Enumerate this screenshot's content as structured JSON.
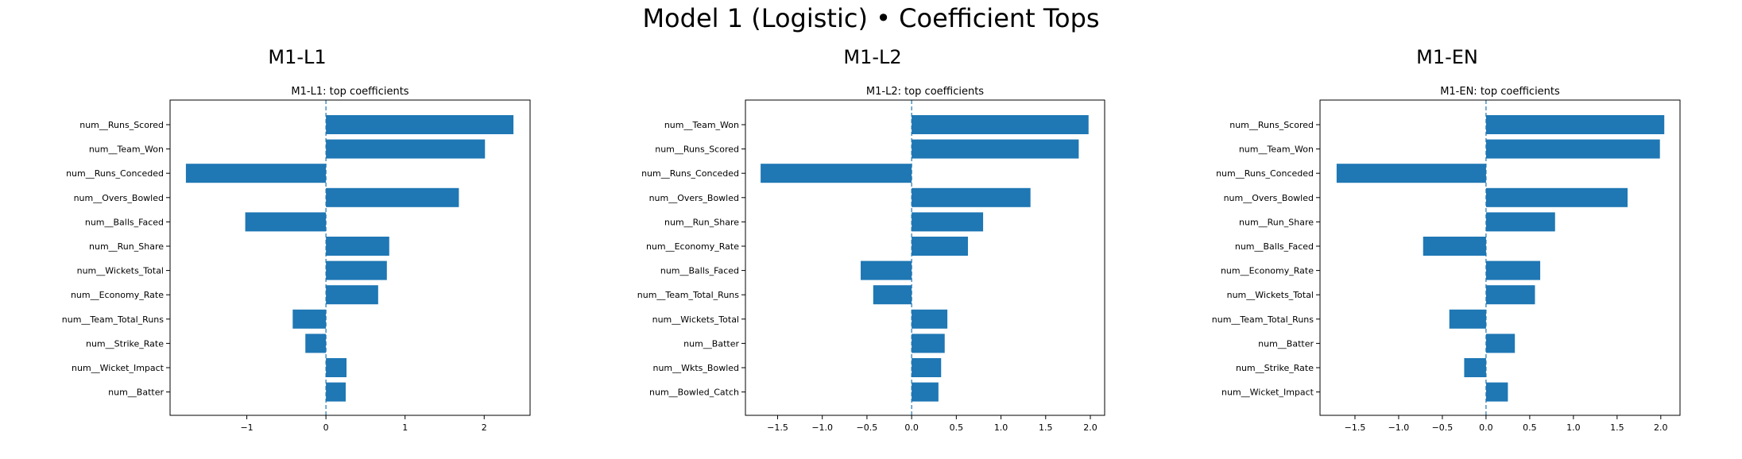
{
  "suptitle": "Model 1 (Logistic) • Coefficient Tops",
  "colors": {
    "bar": "#1f77b4",
    "zero_line": "#1f77b4",
    "axes": "#000000"
  },
  "chart_data": [
    {
      "type": "bar",
      "orientation": "horizontal",
      "panel_title": "M1-L1",
      "title": "M1-L1: top coefficients",
      "xlim": [
        -1.97,
        2.58
      ],
      "xticks": [
        -1,
        0,
        1,
        2
      ],
      "xtick_labels": [
        "−1",
        "0",
        "1",
        "2"
      ],
      "zero_line": "dashed",
      "categories": [
        "num__Runs_Scored",
        "num__Team_Won",
        "num__Runs_Conceded",
        "num__Overs_Bowled",
        "num__Balls_Faced",
        "num__Run_Share",
        "num__Wickets_Total",
        "num__Economy_Rate",
        "num__Team_Total_Runs",
        "num__Strike_Rate",
        "num__Wicket_Impact",
        "num__Batter"
      ],
      "values": [
        2.37,
        2.01,
        -1.77,
        1.68,
        -1.02,
        0.8,
        0.77,
        0.66,
        -0.42,
        -0.26,
        0.26,
        0.25
      ]
    },
    {
      "type": "bar",
      "orientation": "horizontal",
      "panel_title": "M1-L2",
      "title": "M1-L2: top coefficients",
      "xlim": [
        -1.86,
        2.16
      ],
      "xticks": [
        -1.5,
        -1.0,
        -0.5,
        0.0,
        0.5,
        1.0,
        1.5,
        2.0
      ],
      "xtick_labels": [
        "−1.5",
        "−1.0",
        "−0.5",
        "0.0",
        "0.5",
        "1.0",
        "1.5",
        "2.0"
      ],
      "zero_line": "dashed",
      "categories": [
        "num__Team_Won",
        "num__Runs_Scored",
        "num__Runs_Conceded",
        "num__Overs_Bowled",
        "num__Run_Share",
        "num__Economy_Rate",
        "num__Balls_Faced",
        "num__Team_Total_Runs",
        "num__Wickets_Total",
        "num__Batter",
        "num__Wkts_Bowled",
        "num__Bowled_Catch"
      ],
      "values": [
        1.98,
        1.87,
        -1.69,
        1.33,
        0.8,
        0.63,
        -0.57,
        -0.43,
        0.4,
        0.37,
        0.33,
        0.3
      ]
    },
    {
      "type": "bar",
      "orientation": "horizontal",
      "panel_title": "M1-EN",
      "title": "M1-EN: top coefficients",
      "xlim": [
        -1.9,
        2.22
      ],
      "xticks": [
        -1.5,
        -1.0,
        -0.5,
        0.0,
        0.5,
        1.0,
        1.5,
        2.0
      ],
      "xtick_labels": [
        "−1.5",
        "−1.0",
        "−0.5",
        "0.0",
        "0.5",
        "1.0",
        "1.5",
        "2.0"
      ],
      "zero_line": "dashed",
      "categories": [
        "num__Runs_Scored",
        "num__Team_Won",
        "num__Runs_Conceded",
        "num__Overs_Bowled",
        "num__Run_Share",
        "num__Balls_Faced",
        "num__Economy_Rate",
        "num__Wickets_Total",
        "num__Team_Total_Runs",
        "num__Batter",
        "num__Strike_Rate",
        "num__Wicket_Impact"
      ],
      "values": [
        2.04,
        1.99,
        -1.71,
        1.62,
        0.79,
        -0.72,
        0.62,
        0.56,
        -0.42,
        0.33,
        -0.25,
        0.25
      ]
    }
  ]
}
